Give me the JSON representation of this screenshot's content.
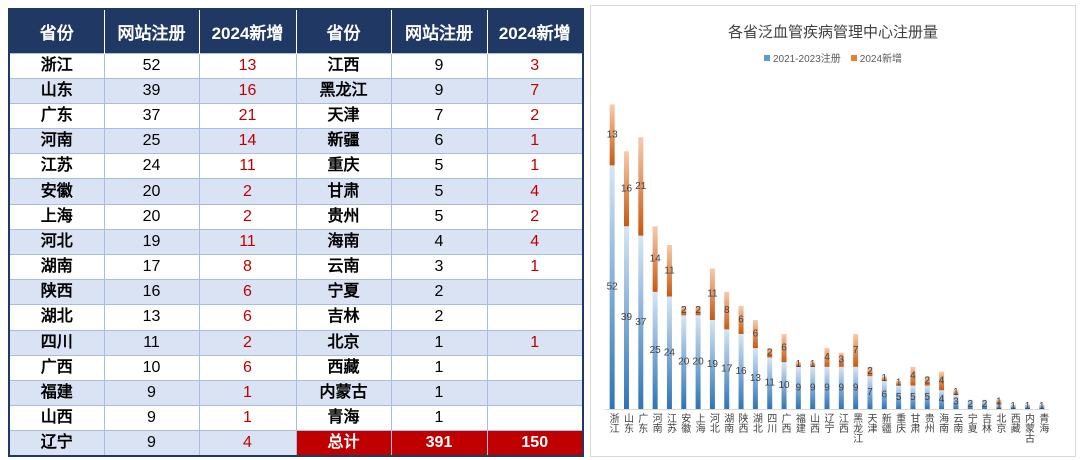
{
  "colors": {
    "header_bg": "#1f3864",
    "alt_row": "#dae3f3",
    "accent_red": "#c00000"
  },
  "table": {
    "headers": [
      "省份",
      "网站注册",
      "2024新增",
      "省份",
      "网站注册",
      "2024新增"
    ],
    "left": [
      {
        "province": "浙江",
        "registered": 52,
        "new_2024": 13
      },
      {
        "province": "山东",
        "registered": 39,
        "new_2024": 16
      },
      {
        "province": "广东",
        "registered": 37,
        "new_2024": 21
      },
      {
        "province": "河南",
        "registered": 25,
        "new_2024": 14
      },
      {
        "province": "江苏",
        "registered": 24,
        "new_2024": 11
      },
      {
        "province": "安徽",
        "registered": 20,
        "new_2024": 2
      },
      {
        "province": "上海",
        "registered": 20,
        "new_2024": 2
      },
      {
        "province": "河北",
        "registered": 19,
        "new_2024": 11
      },
      {
        "province": "湖南",
        "registered": 17,
        "new_2024": 8
      },
      {
        "province": "陕西",
        "registered": 16,
        "new_2024": 6
      },
      {
        "province": "湖北",
        "registered": 13,
        "new_2024": 6
      },
      {
        "province": "四川",
        "registered": 11,
        "new_2024": 2
      },
      {
        "province": "广西",
        "registered": 10,
        "new_2024": 6
      },
      {
        "province": "福建",
        "registered": 9,
        "new_2024": 1
      },
      {
        "province": "山西",
        "registered": 9,
        "new_2024": 1
      },
      {
        "province": "辽宁",
        "registered": 9,
        "new_2024": 4
      }
    ],
    "right": [
      {
        "province": "江西",
        "registered": 9,
        "new_2024": 3
      },
      {
        "province": "黑龙江",
        "registered": 9,
        "new_2024": 7
      },
      {
        "province": "天津",
        "registered": 7,
        "new_2024": 2
      },
      {
        "province": "新疆",
        "registered": 6,
        "new_2024": 1
      },
      {
        "province": "重庆",
        "registered": 5,
        "new_2024": 1
      },
      {
        "province": "甘肃",
        "registered": 5,
        "new_2024": 4
      },
      {
        "province": "贵州",
        "registered": 5,
        "new_2024": 2
      },
      {
        "province": "海南",
        "registered": 4,
        "new_2024": 4
      },
      {
        "province": "云南",
        "registered": 3,
        "new_2024": 1
      },
      {
        "province": "宁夏",
        "registered": 2,
        "new_2024": null
      },
      {
        "province": "吉林",
        "registered": 2,
        "new_2024": null
      },
      {
        "province": "北京",
        "registered": 1,
        "new_2024": 1
      },
      {
        "province": "西藏",
        "registered": 1,
        "new_2024": null
      },
      {
        "province": "内蒙古",
        "registered": 1,
        "new_2024": null
      },
      {
        "province": "青海",
        "registered": 1,
        "new_2024": null
      }
    ],
    "total": {
      "label": "总计",
      "registered": 391,
      "new_2024": 150
    }
  },
  "chart_data": {
    "type": "bar",
    "stacked": true,
    "title": "各省泛血管疾病管理中心注册量",
    "xlabel": "",
    "ylabel": "",
    "legend": "top",
    "grid": false,
    "ylim": [
      0,
      70
    ],
    "categories": [
      "浙江",
      "山东",
      "广东",
      "河南",
      "江苏",
      "安徽",
      "上海",
      "河北",
      "湖南",
      "陕西",
      "湖北",
      "四川",
      "广西",
      "福建",
      "山西",
      "辽宁",
      "江西",
      "黑龙江",
      "天津",
      "新疆",
      "重庆",
      "甘肃",
      "贵州",
      "海南",
      "云南",
      "宁夏",
      "吉林",
      "北京",
      "西藏",
      "内蒙古",
      "青海"
    ],
    "series": [
      {
        "name": "2021-2023注册",
        "color": "#5b9bd5",
        "gradient": [
          "#d6e6f6",
          "#2e75b6"
        ],
        "values": [
          52,
          39,
          37,
          25,
          24,
          20,
          20,
          19,
          17,
          16,
          13,
          11,
          10,
          9,
          9,
          9,
          9,
          9,
          7,
          6,
          5,
          5,
          5,
          4,
          3,
          2,
          2,
          1,
          1,
          1,
          1
        ]
      },
      {
        "name": "2024新增",
        "color": "#ed7d31",
        "gradient": [
          "#f8cbad",
          "#c55a11"
        ],
        "values": [
          13,
          16,
          21,
          14,
          11,
          2,
          2,
          11,
          8,
          6,
          6,
          2,
          6,
          1,
          1,
          4,
          3,
          7,
          2,
          1,
          1,
          4,
          2,
          4,
          1,
          null,
          null,
          1,
          null,
          null,
          null
        ]
      }
    ]
  }
}
